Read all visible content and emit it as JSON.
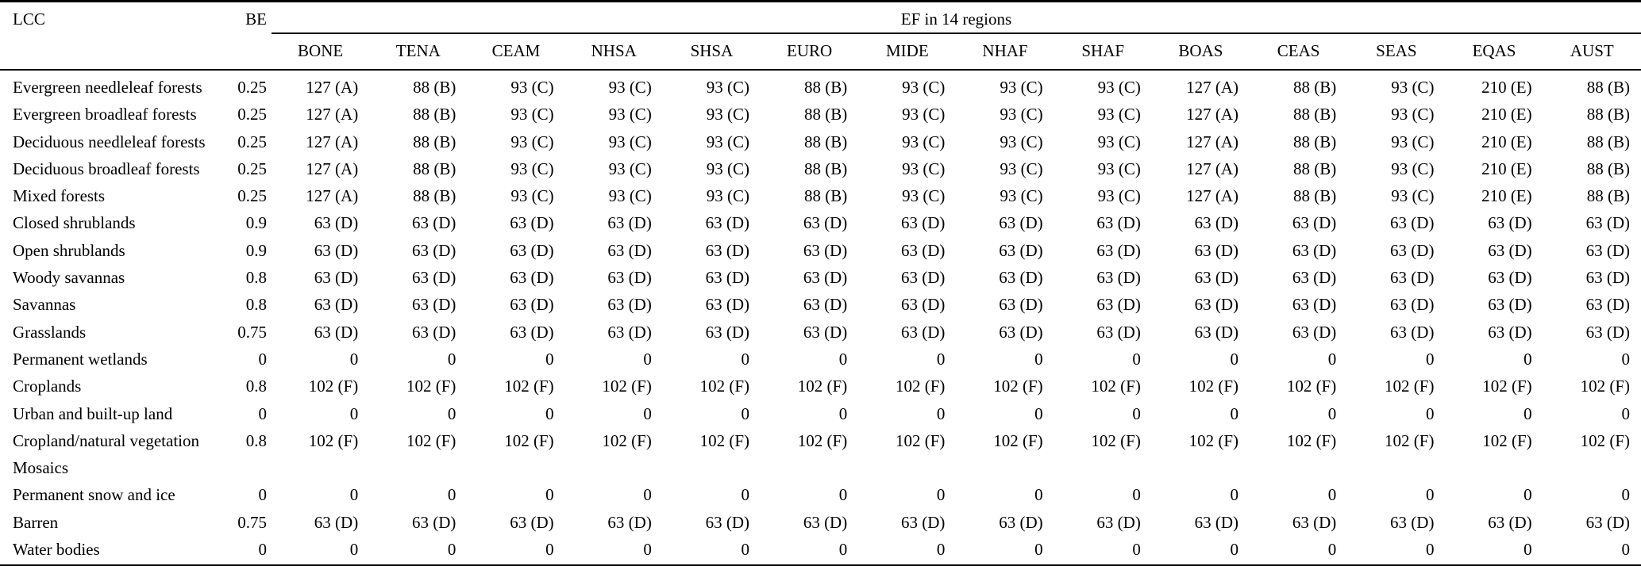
{
  "table": {
    "headers": {
      "lcc": "LCC",
      "be": "BE",
      "span": "EF in 14 regions",
      "regions": [
        "BONE",
        "TENA",
        "CEAM",
        "NHSA",
        "SHSA",
        "EURO",
        "MIDE",
        "NHAF",
        "SHAF",
        "BOAS",
        "CEAS",
        "SEAS",
        "EQAS",
        "AUST"
      ]
    },
    "rows": [
      {
        "lcc": "Evergreen needleleaf forests",
        "be": "0.25",
        "values": [
          "127 (A)",
          "88 (B)",
          "93 (C)",
          "93 (C)",
          "93 (C)",
          "88 (B)",
          "93 (C)",
          "93 (C)",
          "93 (C)",
          "127 (A)",
          "88 (B)",
          "93 (C)",
          "210 (E)",
          "88 (B)"
        ]
      },
      {
        "lcc": "Evergreen broadleaf forests",
        "be": "0.25",
        "values": [
          "127 (A)",
          "88 (B)",
          "93 (C)",
          "93 (C)",
          "93 (C)",
          "88 (B)",
          "93 (C)",
          "93 (C)",
          "93 (C)",
          "127 (A)",
          "88 (B)",
          "93 (C)",
          "210 (E)",
          "88 (B)"
        ]
      },
      {
        "lcc": "Deciduous needleleaf forests",
        "be": "0.25",
        "values": [
          "127 (A)",
          "88 (B)",
          "93 (C)",
          "93 (C)",
          "93 (C)",
          "88 (B)",
          "93 (C)",
          "93 (C)",
          "93 (C)",
          "127 (A)",
          "88 (B)",
          "93 (C)",
          "210 (E)",
          "88 (B)"
        ]
      },
      {
        "lcc": "Deciduous broadleaf forests",
        "be": "0.25",
        "values": [
          "127 (A)",
          "88 (B)",
          "93 (C)",
          "93 (C)",
          "93 (C)",
          "88 (B)",
          "93 (C)",
          "93 (C)",
          "93 (C)",
          "127 (A)",
          "88 (B)",
          "93 (C)",
          "210 (E)",
          "88 (B)"
        ]
      },
      {
        "lcc": "Mixed forests",
        "be": "0.25",
        "values": [
          "127 (A)",
          "88 (B)",
          "93 (C)",
          "93 (C)",
          "93 (C)",
          "88 (B)",
          "93 (C)",
          "93 (C)",
          "93 (C)",
          "127 (A)",
          "88 (B)",
          "93 (C)",
          "210 (E)",
          "88 (B)"
        ]
      },
      {
        "lcc": "Closed shrublands",
        "be": "0.9",
        "values": [
          "63 (D)",
          "63 (D)",
          "63 (D)",
          "63 (D)",
          "63 (D)",
          "63 (D)",
          "63 (D)",
          "63 (D)",
          "63 (D)",
          "63 (D)",
          "63 (D)",
          "63 (D)",
          "63 (D)",
          "63 (D)"
        ]
      },
      {
        "lcc": "Open shrublands",
        "be": "0.9",
        "values": [
          "63 (D)",
          "63 (D)",
          "63 (D)",
          "63 (D)",
          "63 (D)",
          "63 (D)",
          "63 (D)",
          "63 (D)",
          "63 (D)",
          "63 (D)",
          "63 (D)",
          "63 (D)",
          "63 (D)",
          "63 (D)"
        ]
      },
      {
        "lcc": "Woody savannas",
        "be": "0.8",
        "values": [
          "63 (D)",
          "63 (D)",
          "63 (D)",
          "63 (D)",
          "63 (D)",
          "63 (D)",
          "63 (D)",
          "63 (D)",
          "63 (D)",
          "63 (D)",
          "63 (D)",
          "63 (D)",
          "63 (D)",
          "63 (D)"
        ]
      },
      {
        "lcc": "Savannas",
        "be": "0.8",
        "values": [
          "63 (D)",
          "63 (D)",
          "63 (D)",
          "63 (D)",
          "63 (D)",
          "63 (D)",
          "63 (D)",
          "63 (D)",
          "63 (D)",
          "63 (D)",
          "63 (D)",
          "63 (D)",
          "63 (D)",
          "63 (D)"
        ]
      },
      {
        "lcc": "Grasslands",
        "be": "0.75",
        "values": [
          "63 (D)",
          "63 (D)",
          "63 (D)",
          "63 (D)",
          "63 (D)",
          "63 (D)",
          "63 (D)",
          "63 (D)",
          "63 (D)",
          "63 (D)",
          "63 (D)",
          "63 (D)",
          "63 (D)",
          "63 (D)"
        ]
      },
      {
        "lcc": "Permanent wetlands",
        "be": "0",
        "values": [
          "0",
          "0",
          "0",
          "0",
          "0",
          "0",
          "0",
          "0",
          "0",
          "0",
          "0",
          "0",
          "0",
          "0"
        ]
      },
      {
        "lcc": "Croplands",
        "be": "0.8",
        "values": [
          "102 (F)",
          "102 (F)",
          "102 (F)",
          "102 (F)",
          "102 (F)",
          "102 (F)",
          "102 (F)",
          "102 (F)",
          "102 (F)",
          "102 (F)",
          "102 (F)",
          "102 (F)",
          "102 (F)",
          "102 (F)"
        ]
      },
      {
        "lcc": "Urban and built-up land",
        "be": "0",
        "values": [
          "0",
          "0",
          "0",
          "0",
          "0",
          "0",
          "0",
          "0",
          "0",
          "0",
          "0",
          "0",
          "0",
          "0"
        ]
      },
      {
        "lcc": "Cropland/natural vegetation\nMosaics",
        "be": "0.8",
        "values": [
          "102 (F)",
          "102 (F)",
          "102 (F)",
          "102 (F)",
          "102 (F)",
          "102 (F)",
          "102 (F)",
          "102 (F)",
          "102 (F)",
          "102 (F)",
          "102 (F)",
          "102 (F)",
          "102 (F)",
          "102 (F)"
        ]
      },
      {
        "lcc": "Permanent snow and ice",
        "be": "0",
        "values": [
          "0",
          "0",
          "0",
          "0",
          "0",
          "0",
          "0",
          "0",
          "0",
          "0",
          "0",
          "0",
          "0",
          "0"
        ]
      },
      {
        "lcc": "Barren",
        "be": "0.75",
        "values": [
          "63 (D)",
          "63 (D)",
          "63 (D)",
          "63 (D)",
          "63 (D)",
          "63 (D)",
          "63 (D)",
          "63 (D)",
          "63 (D)",
          "63 (D)",
          "63 (D)",
          "63 (D)",
          "63 (D)",
          "63 (D)"
        ]
      },
      {
        "lcc": "Water bodies",
        "be": "0",
        "values": [
          "0",
          "0",
          "0",
          "0",
          "0",
          "0",
          "0",
          "0",
          "0",
          "0",
          "0",
          "0",
          "0",
          "0"
        ]
      }
    ]
  }
}
